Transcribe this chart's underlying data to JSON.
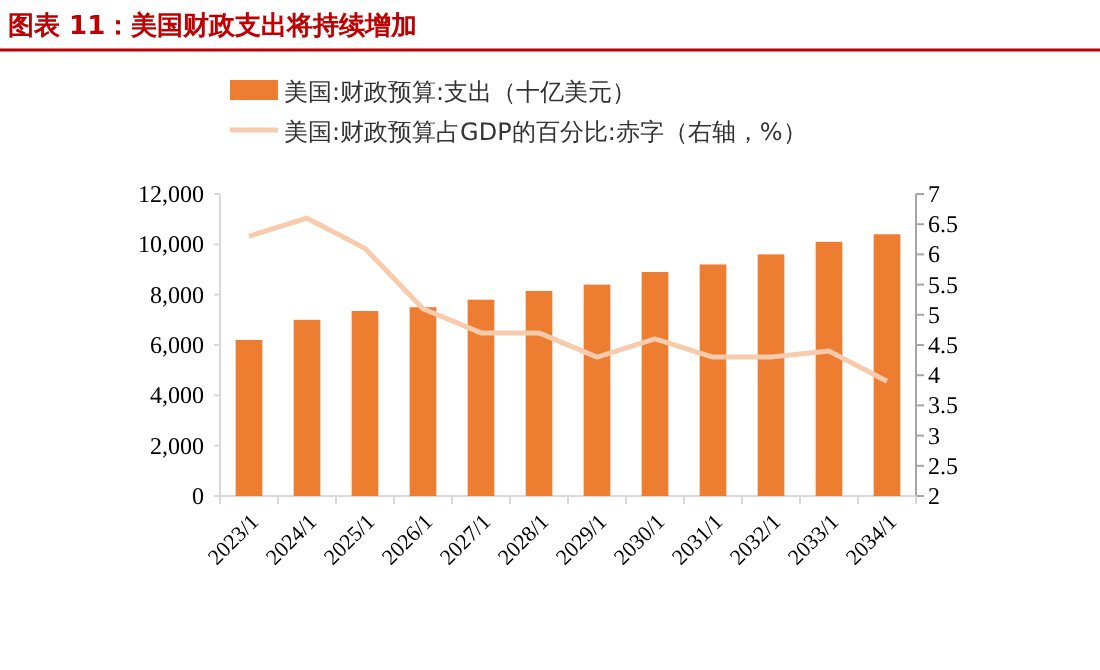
{
  "chart_data": {
    "type": "bar",
    "title": "图表 11：美国财政支出将持续增加",
    "categories": [
      "2023/1",
      "2024/1",
      "2025/1",
      "2026/1",
      "2027/1",
      "2028/1",
      "2029/1",
      "2030/1",
      "2031/1",
      "2032/1",
      "2033/1",
      "2034/1"
    ],
    "series": [
      {
        "name": "美国:财政预算:支出（十亿美元）",
        "color": "#ed7d31",
        "values": [
          6200,
          7000,
          7350,
          7500,
          7800,
          8150,
          8400,
          8900,
          9200,
          9600,
          10100,
          10400
        ]
      },
      {
        "name": "美国:财政预算占GDP的百分比:赤字（右轴，%）",
        "type": "line",
        "axis": "y2",
        "color": "#f8cbad",
        "values": [
          6.3,
          6.6,
          6.1,
          5.1,
          4.7,
          4.7,
          4.3,
          4.6,
          4.3,
          4.3,
          4.4,
          3.9
        ]
      }
    ],
    "ylim": [
      0,
      12000
    ],
    "yticks": [
      {
        "value": 0,
        "label": "0"
      },
      {
        "value": 2000,
        "label": "2,000"
      },
      {
        "value": 4000,
        "label": "4,000"
      },
      {
        "value": 6000,
        "label": "6,000"
      },
      {
        "value": 8000,
        "label": "8,000"
      },
      {
        "value": 10000,
        "label": "10,000"
      },
      {
        "value": 12000,
        "label": "12,000"
      }
    ],
    "y2lim": [
      2,
      7
    ],
    "y2ticks": [
      2,
      2.5,
      3,
      3.5,
      4,
      4.5,
      5,
      5.5,
      6,
      6.5,
      7
    ],
    "legend": "top",
    "grid": false
  }
}
